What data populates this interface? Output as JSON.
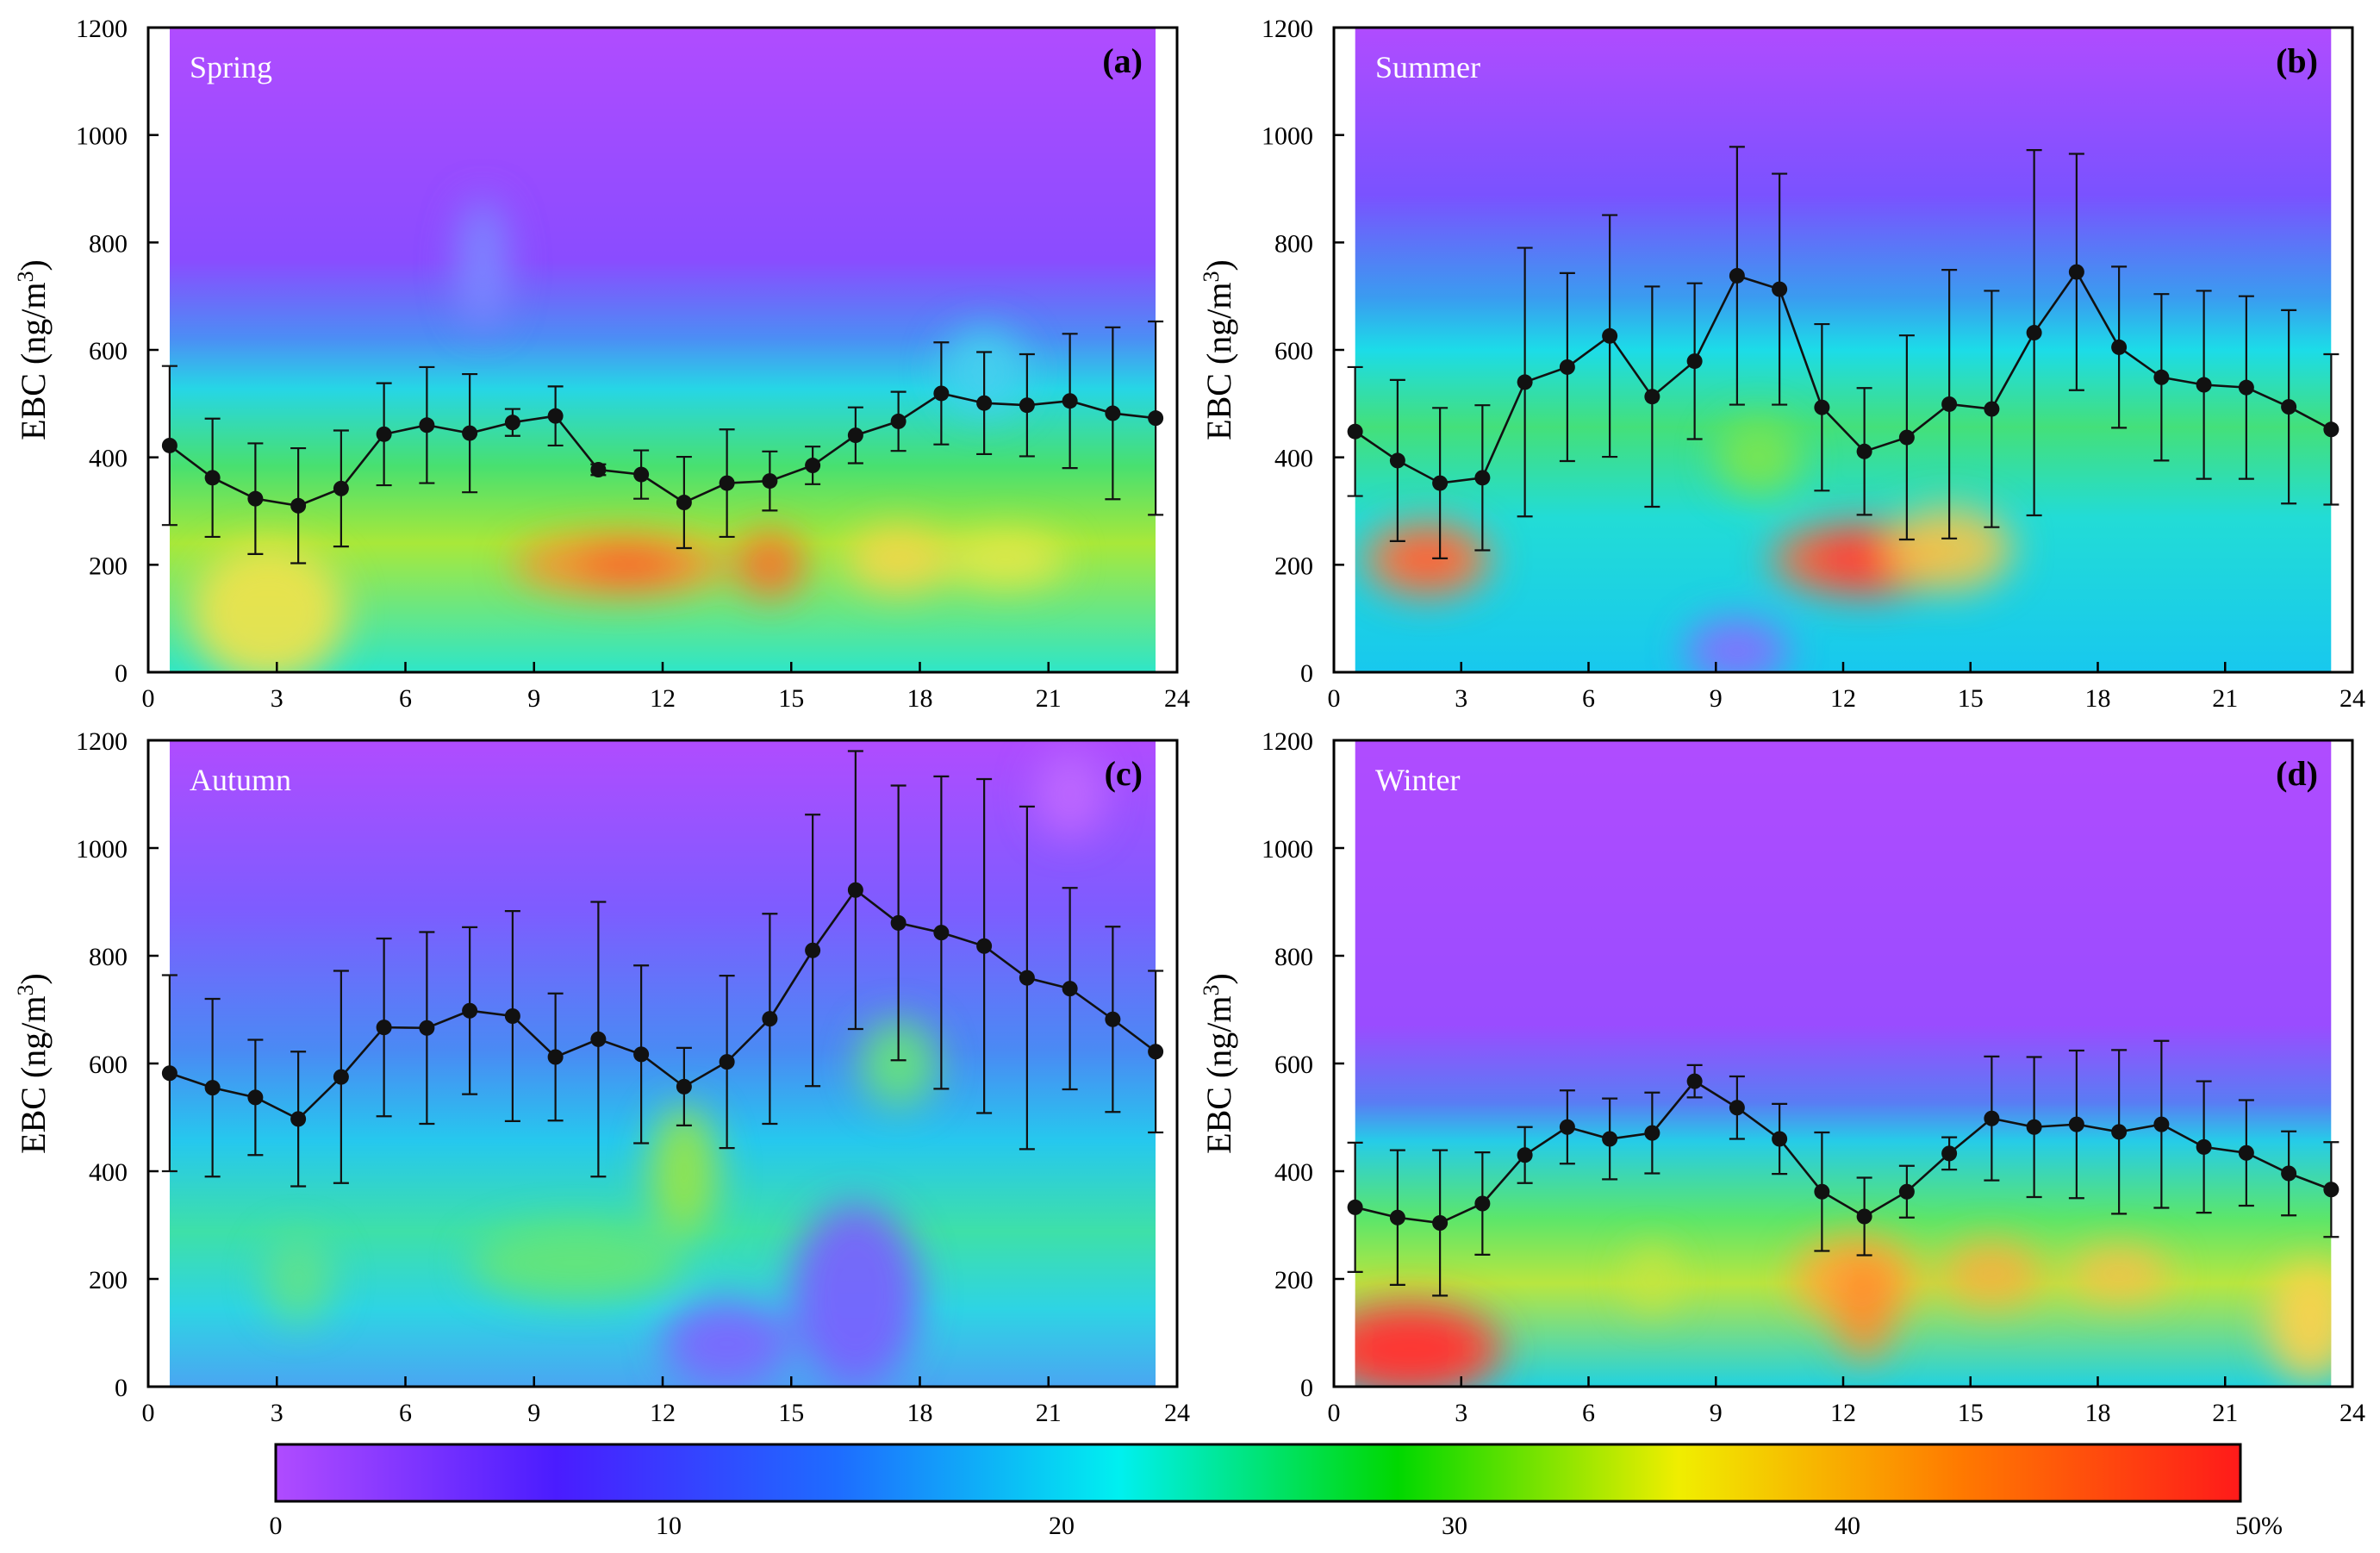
{
  "figure": {
    "ylabel_main": "EBC (ng/m",
    "ylabel_sup": "3",
    "ylabel_end": ")",
    "xticks": [
      "0",
      "3",
      "6",
      "9",
      "12",
      "15",
      "18",
      "21",
      "24"
    ],
    "yticks": [
      "0",
      "200",
      "400",
      "600",
      "800",
      "1000",
      "1200"
    ]
  },
  "colorbar": {
    "ticks": [
      "0",
      "10",
      "20",
      "30",
      "40",
      "50%"
    ],
    "min": 0,
    "max": 50,
    "stops": [
      "#b04cff",
      "#4a1cff",
      "#1e6cff",
      "#00f0f0",
      "#00d800",
      "#f0ee00",
      "#ff7a00",
      "#ff1a1a"
    ]
  },
  "chart_data": [
    {
      "type": "line",
      "panel": "(a)",
      "season": "Spring",
      "x": [
        0.5,
        1.5,
        2.5,
        3.5,
        4.5,
        5.5,
        6.5,
        7.5,
        8.5,
        9.5,
        10.5,
        11.5,
        12.5,
        13.5,
        14.5,
        15.5,
        16.5,
        17.5,
        18.5,
        19.5,
        20.5,
        21.5,
        22.5,
        23.5
      ],
      "values": [
        422,
        362,
        323,
        310,
        342,
        443,
        460,
        445,
        465,
        477,
        377,
        368,
        316,
        352,
        356,
        385,
        441,
        467,
        519,
        501,
        497,
        505,
        482,
        473
      ],
      "errors": [
        148,
        110,
        103,
        107,
        108,
        95,
        108,
        110,
        25,
        55,
        10,
        45,
        85,
        100,
        55,
        35,
        52,
        55,
        95,
        95,
        95,
        125,
        160,
        180
      ],
      "xlim": [
        0,
        24
      ],
      "ylim": [
        0,
        1200
      ],
      "background": "ebc-frequency-contour"
    },
    {
      "type": "line",
      "panel": "(b)",
      "season": "Summer",
      "x": [
        0.5,
        1.5,
        2.5,
        3.5,
        4.5,
        5.5,
        6.5,
        7.5,
        8.5,
        9.5,
        10.5,
        11.5,
        12.5,
        13.5,
        14.5,
        15.5,
        16.5,
        17.5,
        18.5,
        19.5,
        20.5,
        21.5,
        22.5,
        23.5
      ],
      "values": [
        448,
        394,
        352,
        362,
        540,
        568,
        626,
        513,
        579,
        738,
        713,
        493,
        411,
        437,
        499,
        490,
        632,
        745,
        605,
        549,
        535,
        530,
        494,
        452
      ],
      "errors": [
        120,
        150,
        140,
        135,
        250,
        175,
        225,
        205,
        145,
        240,
        215,
        155,
        118,
        190,
        250,
        220,
        340,
        220,
        150,
        155,
        175,
        170,
        180,
        140
      ],
      "xlim": [
        0,
        24
      ],
      "ylim": [
        0,
        1200
      ],
      "background": "ebc-frequency-contour"
    },
    {
      "type": "line",
      "panel": "(c)",
      "season": "Autumn",
      "x": [
        0.5,
        1.5,
        2.5,
        3.5,
        4.5,
        5.5,
        6.5,
        7.5,
        8.5,
        9.5,
        10.5,
        11.5,
        12.5,
        13.5,
        14.5,
        15.5,
        16.5,
        17.5,
        18.5,
        19.5,
        20.5,
        21.5,
        22.5,
        23.5
      ],
      "values": [
        582,
        555,
        537,
        497,
        575,
        667,
        666,
        698,
        688,
        612,
        645,
        617,
        557,
        603,
        683,
        810,
        922,
        861,
        843,
        818,
        759,
        739,
        682,
        622
      ],
      "errors": [
        182,
        165,
        107,
        125,
        197,
        165,
        178,
        155,
        195,
        118,
        255,
        165,
        72,
        160,
        195,
        252,
        258,
        255,
        290,
        310,
        318,
        187,
        172,
        150
      ],
      "xlim": [
        0,
        24
      ],
      "ylim": [
        0,
        1200
      ],
      "background": "ebc-frequency-contour"
    },
    {
      "type": "line",
      "panel": "(d)",
      "season": "Winter",
      "x": [
        0.5,
        1.5,
        2.5,
        3.5,
        4.5,
        5.5,
        6.5,
        7.5,
        8.5,
        9.5,
        10.5,
        11.5,
        12.5,
        13.5,
        14.5,
        15.5,
        16.5,
        17.5,
        18.5,
        19.5,
        20.5,
        21.5,
        22.5,
        23.5
      ],
      "values": [
        333,
        314,
        304,
        340,
        430,
        482,
        460,
        471,
        567,
        518,
        460,
        362,
        316,
        362,
        433,
        498,
        482,
        487,
        473,
        487,
        445,
        434,
        396,
        366
      ],
      "errors": [
        120,
        125,
        135,
        95,
        52,
        68,
        75,
        75,
        30,
        58,
        65,
        110,
        72,
        48,
        30,
        115,
        130,
        137,
        152,
        155,
        122,
        98,
        78,
        88
      ],
      "xlim": [
        0,
        24
      ],
      "ylim": [
        0,
        1200
      ],
      "background": "ebc-frequency-contour"
    }
  ]
}
